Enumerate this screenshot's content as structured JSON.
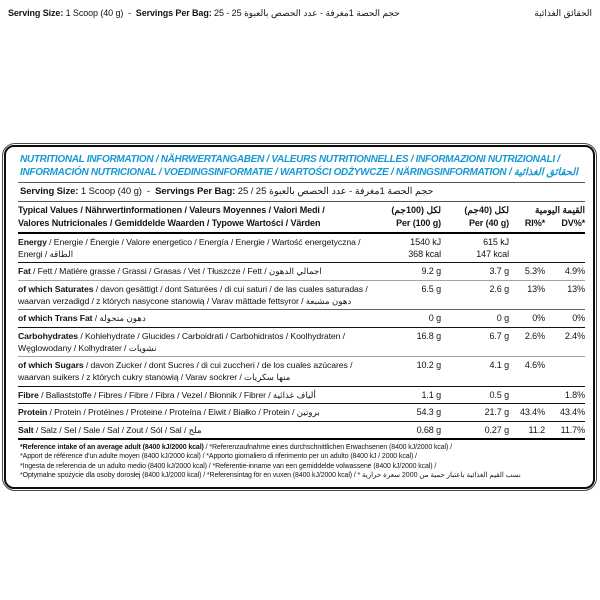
{
  "colors": {
    "accent_blue": "#1799d3",
    "text": "#141414",
    "rule_dark": "#000000"
  },
  "top_line": {
    "serving_size_label": "Serving Size:",
    "serving_size_value": "1 Scoop (40 g)",
    "separator": "-",
    "servings_per_bag_label": "Servings Per Bag:",
    "servings_per_bag_value": "25",
    "separator2": "-",
    "arabic_serving_info": "حجم الحصة 1مغرفة - عدد الحصص بالعبوة 25",
    "arabic_title": "الحقائق الغذائية"
  },
  "table": {
    "title_line1": "NUTRITIONAL INFORMATION / NÄHRWERTANGABEN / VALEURS NUTRITIONNELLES / INFORMAZIONI NUTRIZIONALI /",
    "title_line2": "INFORMACIÓN NUTRICIONAL / VOEDINGSINFORMATIE / WARTOŚCI ODŻYWCZE / NÄRINGSINFORMATION / الحقائق الغذائية",
    "serving_line": {
      "serving_size_label": "Serving Size:",
      "serving_size_value": "1 Scoop (40 g)",
      "separator": "-",
      "servings_per_bag_label": "Servings Per Bag:",
      "servings_per_bag_value": "25 /",
      "arabic": "حجم الحصة 1مغرفة - عدد الحصص بالعبوة 25"
    },
    "columns_header": {
      "label_line1": "Typical Values / Nährwertinformationen / Valeurs Moyennes / Valori Medi /",
      "label_line2": "Valores Nutricionales / Gemiddelde Waarden / Typowe Wartości / Värden",
      "per100_ar": "لكل (100جم)",
      "per100_en": "Per (100 g)",
      "per40_ar": "لكل (40جم)",
      "per40_en": "Per (40 g)",
      "daily_value_ar": "القيمة اليومية",
      "ri_label": "RI%*",
      "dv_label": "DV%*"
    },
    "rows": [
      {
        "id": "energy",
        "bold": "Energy",
        "rest": " / Energie / Énergie / Valore energetico / Energía / Energie / Wartość energetyczna /",
        "label2": "Energi / الطاقة",
        "v1": "1540 kJ",
        "v1b": "368 kcal",
        "v2": "615 kJ",
        "v2b": "147 kcal",
        "ri": "",
        "dv": "",
        "border": "none"
      },
      {
        "id": "fat",
        "bold": "Fat",
        "rest": " / Fett / Matière grasse / Grassi / Grasas / Vet / Tłuszcze / Fett / اجمالي الدهون",
        "v1": "9.2 g",
        "v2": "3.7 g",
        "ri": "5.3%",
        "dv": "4.9%",
        "border": "dark"
      },
      {
        "id": "saturates",
        "bold": "of which Saturates",
        "rest": " / davon gesättigt / dont Saturées / di cui saturi / de las cuales saturadas /",
        "label2": "waarvan verzadigd / z których nasycone stanowią / Varav mättade fettsyror / دهون مشبعة",
        "v1": "6.5 g",
        "v2": "2.6 g",
        "ri": "13%",
        "dv": "13%",
        "border": "light"
      },
      {
        "id": "trans-fat",
        "bold": "of which Trans Fat",
        "rest": " / دهون متحولة",
        "v1": "0 g",
        "v2": "0 g",
        "ri": "0%",
        "dv": "0%",
        "border": "mid"
      },
      {
        "id": "carbohydrates",
        "bold": "Carbohydrates",
        "rest": " / Kohlehydrate / Glucides / Carboidrati / Carbohidratos / Koolhydraten /",
        "label2": "Węglowodany / Kolhydrater / نشويات",
        "v1": "16.8 g",
        "v2": "6.7 g",
        "ri": "2.6%",
        "dv": "2.4%",
        "border": "dark"
      },
      {
        "id": "sugars",
        "bold": "of which Sugars",
        "rest": " / davon Zucker / dont Sucres / di cui zuccheri / de los cuales azúcares /",
        "label2": "waarvan suikers / z których cukry stanowią / Varav sockrer / منها سكريات",
        "v1": "10.2 g",
        "v2": "4.1 g",
        "ri": "4.6%",
        "dv": "",
        "border": "light"
      },
      {
        "id": "fibre",
        "bold": "Fibre",
        "rest": " / Ballaststoffe / Fibres / Fibre / Fibra / Vezel / Błonnik / Fibrer / ألياف غذائية",
        "v1": "1.1 g",
        "v2": "0.5 g",
        "ri": "",
        "dv": "1.8%",
        "border": "dark"
      },
      {
        "id": "protein",
        "bold": "Protein",
        "rest": " / Protein / Protéines / Proteine / Proteína / Eiwit / Białko / Protein / بروتين",
        "v1": "54.3 g",
        "v2": "21.7 g",
        "ri": "43.4%",
        "dv": "43.4%",
        "border": "dark"
      },
      {
        "id": "salt",
        "bold": "Salt",
        "rest": " / Salz / Sel / Sale / Sal / Zout / Sól / Sal / ملح",
        "v1": "0.68 g",
        "v2": "0.27 g",
        "ri": "11.2",
        "dv": "11.7%",
        "border": "dark"
      }
    ],
    "footnotes": [
      {
        "bold": "*Reference intake of an average adult (8400 kJ/2000 kcal)",
        "rest": " / *Referenzaufnahme eines durchschnittlichen Erwachsenen (8400 kJ/2000 kcal) /"
      },
      {
        "bold": "",
        "rest": "*Apport de référence d'un adulte moyen (8400 kJ/2000 kcal) / *Apporto giornaliero di riferimento per un adulto (8400 kJ / 2000 kcal) /"
      },
      {
        "bold": "",
        "rest": "*Ingesta de referencia de un adulto medio (8400 kJ/2000 kcal) / *Referentie-inname van een gemiddelde volwassene (8400 kJ/2000 kcal) /"
      },
      {
        "bold": "",
        "rest": "*Optymalne spożycie dla osoby dorosłej (8400 kJ/2000 kcal) / *Referensintag för en vuxen (8400 kJ/2000 kcal) / * نسب القيم الغذائية باعتبار حمية من 2000 سعرة حرارية"
      }
    ]
  }
}
